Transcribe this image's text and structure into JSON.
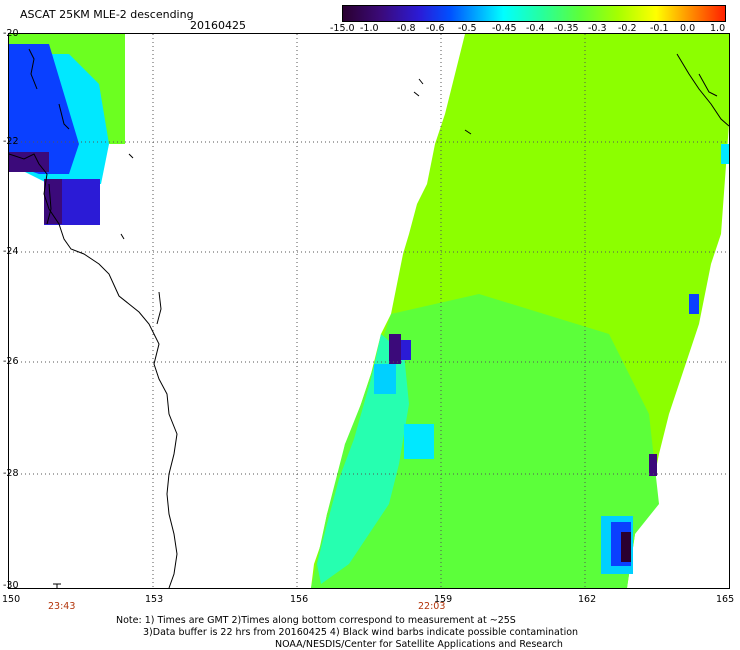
{
  "header": {
    "title": "ASCAT 25KM MLE-2 descending",
    "date": "20160425"
  },
  "colorbar": {
    "labels": [
      "-15.0",
      "-1.0",
      "-0.8",
      "-0.6",
      "-0.5",
      "-0.45",
      "-0.4",
      "-0.35",
      "-0.3",
      "-0.2",
      "-0.1",
      "0.0",
      "1.0"
    ],
    "colors": [
      "#2a0030",
      "#3b0a7a",
      "#2b1bd6",
      "#0050ff",
      "#00b4ff",
      "#00ffff",
      "#26ff9e",
      "#5cff3a",
      "#a6ff00",
      "#ffff00",
      "#ff9a00",
      "#ff2000"
    ]
  },
  "map": {
    "lat_labels": [
      "-20",
      "-22",
      "-24",
      "-26",
      "-28",
      "-30"
    ],
    "lon_labels": [
      "150",
      "153",
      "156",
      "159",
      "162",
      "165"
    ],
    "time_labels": [
      "23:43",
      "22:03"
    ],
    "colors": {
      "swath_green": "#8cff00",
      "lime": "#6cff20",
      "cyan": "#00e8ff",
      "blue": "#0a40ff",
      "purple": "#3b0a7a",
      "coast": "#000000",
      "grid": "#555555"
    }
  },
  "notes": {
    "line1": "Note: 1) Times are GMT 2)Times along bottom correspond to measurement at ~25S",
    "line2": "3)Data buffer is 22 hrs from 20160425 4) Black wind barbs indicate possible contamination",
    "line3": "NOAA/NESDIS/Center for Satellite Applications and Research"
  }
}
